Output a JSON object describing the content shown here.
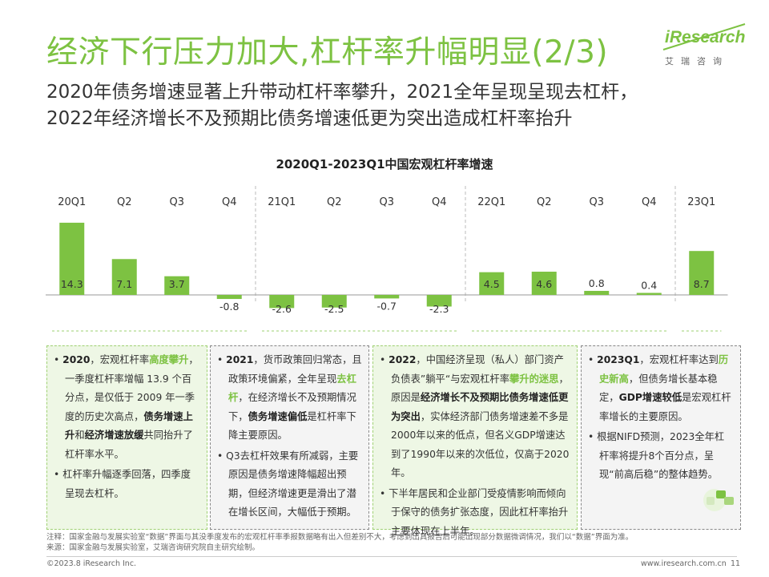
{
  "title": "经济下行压力加大,杠杆率升幅明显(2/3)",
  "subtitle": [
    "2020年债务增速显著上升带动杠杆率攀升，2021全年呈现呈现去杠杆，",
    "2022年经济增长不及预期比债务增速低更为突出造成杠杆率抬升"
  ],
  "logo": {
    "word": "iResearch",
    "sub": "艾瑞咨询"
  },
  "chart_data": {
    "type": "bar",
    "title": "2020Q1-2023Q1中国宏观杠杆率增速",
    "categories": [
      "20Q1",
      "Q2",
      "Q3",
      "Q4",
      "21Q1",
      "Q2",
      "Q3",
      "Q4",
      "22Q1",
      "Q2",
      "Q3",
      "Q4",
      "23Q1"
    ],
    "values": [
      14.3,
      7.1,
      3.7,
      -0.8,
      -2.6,
      -2.5,
      -0.7,
      -2.3,
      4.5,
      4.6,
      0.8,
      0.4,
      8.7
    ],
    "value_labels": [
      "14.3",
      "7.1",
      "3.7",
      "-0.8",
      "-2.6",
      "-2.5",
      "-0.7",
      "-2.3",
      "4.5",
      "4.6",
      "0.8",
      "0.4",
      "8.7"
    ],
    "bar_color": "#7dc242",
    "year_dividers_after": [
      3,
      7,
      11
    ],
    "grid": false,
    "legend": "none"
  },
  "boxes": [
    {
      "p": [
        [
          "• ",
          {
            "b": "2020"
          },
          "，宏观杠杆率",
          {
            "g": "高度攀升"
          },
          "，一季度杠杆率增幅 13.9 个百分点，是仅低于 2009 年一季度的历史次高点，",
          {
            "b": "债务增速上升"
          },
          "和",
          {
            "b": "经济增速放缓"
          },
          "共同抬升了杠杆率水平。"
        ],
        [
          "• 杠杆率升幅逐季回落，四季度呈现去杠杆。"
        ]
      ]
    },
    {
      "p": [
        [
          "• ",
          {
            "b": "2021"
          },
          "，货币政策回归常态，且政策环境偏紧，全年呈现",
          {
            "g": "去杠杆"
          },
          "，在经济增长不及预期情况下，",
          {
            "b": "债务增速偏低"
          },
          "是杠杆率下降主要原因。"
        ],
        [
          "• Q3去杠杆效果有所减弱，主要原因是债务增速降幅超出预期，但经济增速更是滑出了潜在增长区间，大幅低于预期。"
        ]
      ]
    },
    {
      "p": [
        [
          "• ",
          {
            "b": "2022"
          },
          "，中国经济呈现（私人）部门资产负债表”躺平“与宏观杠杆率",
          {
            "g": "攀升的迷思"
          },
          "，原因是",
          {
            "b": "经济增长不及预期比债务增速低更为突出"
          },
          "，实体经济部门债务增速差不多是2000年以来的低点，但名义GDP增速达到了1990年以来的次低位，仅高于2020年。"
        ],
        [
          "• 下半年居民和企业部门受疫情影响而倾向于保守的债务扩张态度，因此杠杆率抬升主要体现在上半年。"
        ]
      ]
    },
    {
      "p": [
        [
          "• ",
          {
            "b": "2023Q1"
          },
          "，宏观杠杆率达到",
          {
            "g": "历史新高"
          },
          "，但债务增长基本稳定，",
          {
            "b": "GDP增速较低"
          },
          "是宏观杠杆率增长的主要原因。"
        ],
        [
          "• 根据NIFD预测，2023全年杠杆率将提升8个百分点，呈现“前高后稳”的整体趋势。"
        ]
      ]
    }
  ],
  "note": "注释：国家金融与发展实验室“数据”界面与其没季度发布的宏观杠杆率季报数据略有出入但差别不大，考虑到出具报告后可能出现部分数据微调情况，我们以“数据”界面为准。",
  "source": "来源：国家金融与发展实验室，艾瑞咨询研究院自主研究绘制。",
  "footer": {
    "copyright": "©2023.8 iResearch Inc.",
    "url": "www.iresearch.com.cn",
    "page": "11"
  }
}
